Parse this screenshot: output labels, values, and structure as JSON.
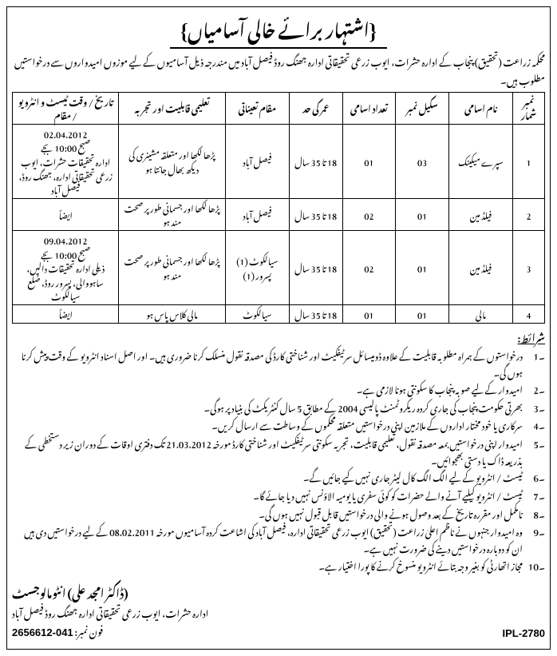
{
  "title": "{اشتہار برائے خالی آسامیاں}",
  "intro": "محکمہ زراعت (تحقیق) پنجاب کے ادارہ حشرات، ایوب زرعی تحقیقاتی ادارہ جھنگ روڈ فیصل آباد میں مندرجہ ذیل آسامیوں کے لیے موزوں امیدواروں سے درخواستیں مطلوب ہیں۔",
  "table": {
    "headers": [
      "نمبر شمار",
      "نام اسامی",
      "سکیل نمبر",
      "تعداد اسامی",
      "عمر کی حد",
      "مقام تعیناتی",
      "تعلیمی قابلیت اور تجربہ",
      "تاریخ / وقت ٹیسٹ و انٹرویو / مقام"
    ],
    "rows": [
      {
        "num": "1",
        "post": "سپرے میکینک",
        "scale": "03",
        "count": "01",
        "age": "18 تا 35 سال",
        "loc": "فیصل آباد",
        "qual": "پڑھا لکھا اور متعلقہ مشینری کی دیکھ بھال جانتا ہو",
        "date": "02.04.2012\nصبح 10:00 بجے\nادارہ تحقیقات حشرات، ایوب زرعی تحقیقاتی ادارہ، جھنگ روڈ، فیصل آباد"
      },
      {
        "num": "2",
        "post": "فیلڈ مین",
        "scale": "01",
        "count": "02",
        "age": "18 تا 35 سال",
        "loc": "فیصل آباد",
        "qual": "پڑھا لکھا اور جسمانی طور پر صحت مند ہو",
        "date": "ایضاً"
      },
      {
        "num": "3",
        "post": "فیلڈ مین",
        "scale": "01",
        "count": "02",
        "age": "18 تا 35 سال",
        "loc": "سیالکوٹ (1)\nپسرور (1)",
        "qual": "پڑھا لکھا اور جسمانی طور پر صحت مند ہو",
        "date": "09.04.2012\nصبح 10:00 بجے\nذیلی ادارہ تحقیقات دالیں، ساہووالی، پسرور روڈ، ضلع سیالکوٹ"
      },
      {
        "num": "4",
        "post": "مالی",
        "scale": "01",
        "count": "01",
        "age": "18 تا 35 سال",
        "loc": "سیالکوٹ",
        "qual": "مالی کلاس پاس ہو",
        "date": "ایضاً"
      }
    ]
  },
  "conditions_head": "شرائط:",
  "conditions": [
    "درخواستوں کے ہمراہ مطلوبہ قابلیت کے علاوہ ڈومیسائل سرٹیفکیٹ اور شناختی کارڈ کی مصدقہ نقول منسلک کرنا ضروری ہیں۔ اور اصل اسناد انٹرویو کے وقت پیش کرنا ہوں گی۔",
    "امیدوار کے لیے صوبہ پنجاب کا سکونتی ہونا لازمی ہے۔",
    "بھرتی حکومت پنجاب کی جاری کردہ ریکروٹمنٹ پالیسی 2004 کے مطابق 5 سال کنٹریکٹ کی بنیاد پر ہوگی۔",
    "سرکاری یا خود مختار اداروں کے ملازمین اپنی درخواستیں متعلقہ محکموں کے وساطت سے ارسال کریں۔",
    "امیدوار اپنی درخواستیں بمعہ مصدقہ نقول، تعلیمی قابلیت، تجربہ سکونتی سرٹیفکیٹ اور شناختی کارڈ مورخہ 21.03.2012 تک دفتری اوقات کے دوران زیر دستخطی کے بذریعہ ڈاک یا دستی بھجوائیں۔",
    "ٹیسٹ / انٹرویو کے لیے الگ الگ کال لیٹر جاری نہیں کیے جائیں گے۔",
    "ٹیسٹ / انٹرویو کیلیے آنے والے حضرات کو کوئی سفری یا یومیہ الاؤنس نہیں دیا جائے گا۔",
    "نامکمل اور مقررہ تاریخ کے بعد وصول ہونے والی درخواستیں قابل قبول نہیں ہوں گی۔",
    "وہ امیدوار جنہوں نے ناظم اعلیٰ زراعت (تحقیق) ایوب زرعی تحقیقاتی ادارہ، فیصل آباد کی اشاعت کردہ آسامیوں مورخہ 08.02.2011 کے لیے درخواستیں دی ہیں ان کو دوبارہ درخواستیں دینے کی ضرورت نہیں ہے۔",
    "مجاز اتھارٹی کو بغیر وجہ بتائے انٹرویو منسوخ کرنے کا پورا اختیار ہے۔"
  ],
  "signer_name": "(ڈاکٹر امجد علی)    انٹومالوجسٹ",
  "signer_org": "ادارہ حشرات، ایوب زرعی تحقیقاتی ادارہ جھنگ روڈ فیصل آباد",
  "phone_label": "فون نمبر:",
  "phone": "041-2656612",
  "ipl": "IPL-2780"
}
